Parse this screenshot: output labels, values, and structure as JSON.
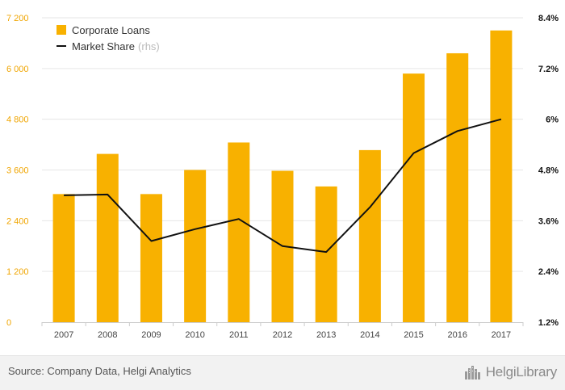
{
  "colors": {
    "bars": "#f8b100",
    "line": "#111111",
    "left_axis": "#f0a500",
    "right_axis": "#111111",
    "grid": "#e6e6e6"
  },
  "legend": {
    "bars_label": "Corporate Loans",
    "line_label": "Market Share",
    "line_suffix": "(rhs)"
  },
  "footer": {
    "source": "Source: Company Data, Helgi Analytics",
    "brand": "HelgiLibrary",
    "brand_icon": "city-skyline-icon"
  },
  "chart_data": {
    "type": "bar",
    "categories": [
      "2007",
      "2008",
      "2009",
      "2010",
      "2011",
      "2012",
      "2013",
      "2014",
      "2015",
      "2016",
      "2017"
    ],
    "series": [
      {
        "name": "Corporate Loans",
        "type": "bar",
        "axis": "left",
        "values": [
          3030,
          3980,
          3030,
          3600,
          4250,
          3580,
          3210,
          4070,
          5880,
          6360,
          6900
        ]
      },
      {
        "name": "Market Share",
        "type": "line",
        "axis": "right",
        "values": [
          4.2,
          4.22,
          3.12,
          3.4,
          3.64,
          3.0,
          2.86,
          3.92,
          5.2,
          5.72,
          6.0
        ]
      }
    ],
    "left_axis": {
      "ylim": [
        0,
        7200
      ],
      "ticks": [
        "0",
        "1 200",
        "2 400",
        "3 600",
        "4 800",
        "6 000",
        "7 200"
      ]
    },
    "right_axis": {
      "ylim": [
        1.2,
        8.4
      ],
      "ticks": [
        "1.2%",
        "2.4%",
        "3.6%",
        "4.8%",
        "6%",
        "7.2%",
        "8.4%"
      ]
    },
    "grid": true,
    "legend_position": "top-left"
  }
}
